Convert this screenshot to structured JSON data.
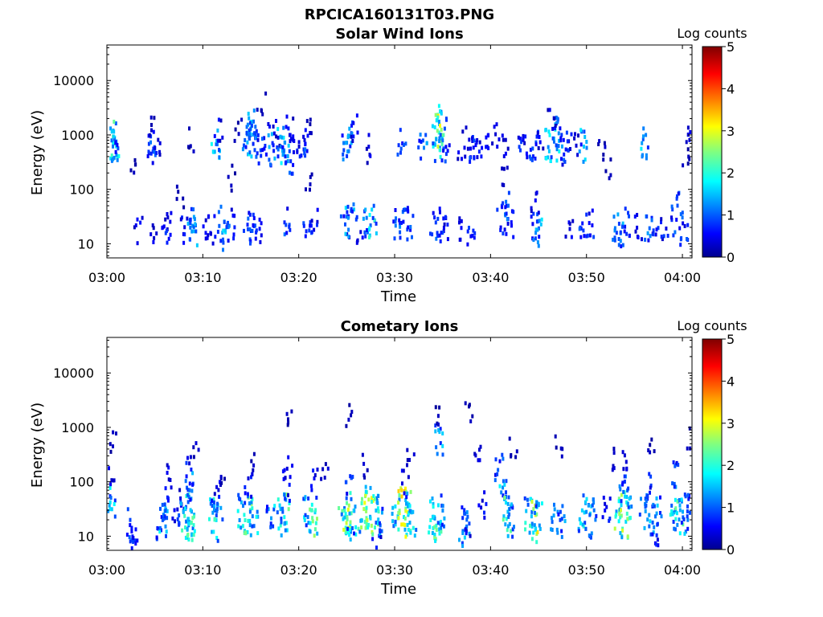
{
  "figure": {
    "title": "RPCICA160131T03.PNG"
  },
  "colorbar": {
    "label": "Log counts",
    "ticks": [
      "0",
      "1",
      "2",
      "3",
      "4",
      "5"
    ],
    "range": [
      0,
      5
    ],
    "colormap": "jet"
  },
  "chart_data": [
    {
      "type": "heatmap",
      "title": "Solar Wind Ions",
      "xlabel": "Time",
      "ylabel": "Energy (eV)",
      "xticks": [
        "03:00",
        "03:10",
        "03:20",
        "03:30",
        "03:40",
        "03:50",
        "04:00"
      ],
      "xlim_minutes": [
        0,
        61
      ],
      "yticks": [
        "10",
        "100",
        "1000",
        "10000"
      ],
      "ylim_eV": [
        5.5,
        45000
      ],
      "yscale": "log",
      "value_label": "Log counts",
      "value_range": [
        0,
        5
      ],
      "bursts": [
        {
          "t": 0.7,
          "e": 900,
          "v": 2.0
        },
        {
          "t": 0.7,
          "e": 650,
          "v": 1.6
        },
        {
          "t": 0.7,
          "e": 450,
          "v": 1.2
        },
        {
          "t": 2.5,
          "e": 350,
          "v": 0.3
        },
        {
          "t": 3.2,
          "e": 18,
          "v": 0.6
        },
        {
          "t": 4.8,
          "e": 14,
          "v": 0.5
        },
        {
          "t": 4.6,
          "e": 650,
          "v": 1.0
        },
        {
          "t": 4.6,
          "e": 900,
          "v": 1.2
        },
        {
          "t": 4.6,
          "e": 1500,
          "v": 0.3
        },
        {
          "t": 5.2,
          "e": 600,
          "v": 0.4
        },
        {
          "t": 6.0,
          "e": 20,
          "v": 0.7
        },
        {
          "t": 6.3,
          "e": 25,
          "v": 0.8
        },
        {
          "t": 7.5,
          "e": 80,
          "v": 0.3
        },
        {
          "t": 8.0,
          "e": 20,
          "v": 0.8
        },
        {
          "t": 8.6,
          "e": 25,
          "v": 1.3
        },
        {
          "t": 9.0,
          "e": 20,
          "v": 1.4
        },
        {
          "t": 8.5,
          "e": 900,
          "v": 0.3
        },
        {
          "t": 10.0,
          "e": 25,
          "v": 0.6
        },
        {
          "t": 10.9,
          "e": 20,
          "v": 0.7
        },
        {
          "t": 11.2,
          "e": 600,
          "v": 1.8
        },
        {
          "t": 11.5,
          "e": 1500,
          "v": 0.6
        },
        {
          "t": 11.8,
          "e": 25,
          "v": 1.5
        },
        {
          "t": 12.3,
          "e": 15,
          "v": 1.2
        },
        {
          "t": 12.8,
          "e": 25,
          "v": 0.8
        },
        {
          "t": 12.8,
          "e": 180,
          "v": 0.3
        },
        {
          "t": 13.5,
          "e": 1200,
          "v": 0.3
        },
        {
          "t": 14.5,
          "e": 25,
          "v": 1.0
        },
        {
          "t": 15.0,
          "e": 20,
          "v": 1.1
        },
        {
          "t": 15.6,
          "e": 20,
          "v": 0.9
        },
        {
          "t": 14.5,
          "e": 700,
          "v": 1.1
        },
        {
          "t": 14.8,
          "e": 1000,
          "v": 2.0
        },
        {
          "t": 15.0,
          "e": 1500,
          "v": 1.4
        },
        {
          "t": 15.2,
          "e": 800,
          "v": 1.2
        },
        {
          "t": 15.5,
          "e": 600,
          "v": 0.8
        },
        {
          "t": 16.0,
          "e": 4000,
          "v": 0.3
        },
        {
          "t": 16.5,
          "e": 900,
          "v": 1.0
        },
        {
          "t": 17.0,
          "e": 600,
          "v": 1.3
        },
        {
          "t": 17.5,
          "e": 1200,
          "v": 0.5
        },
        {
          "t": 18.0,
          "e": 700,
          "v": 1.6
        },
        {
          "t": 18.5,
          "e": 900,
          "v": 1.4
        },
        {
          "t": 18.9,
          "e": 400,
          "v": 1.2
        },
        {
          "t": 19.3,
          "e": 600,
          "v": 1.0
        },
        {
          "t": 19.0,
          "e": 1500,
          "v": 0.6
        },
        {
          "t": 18.8,
          "e": 25,
          "v": 1.0
        },
        {
          "t": 20.3,
          "e": 600,
          "v": 0.7
        },
        {
          "t": 20.8,
          "e": 800,
          "v": 1.0
        },
        {
          "t": 21.2,
          "e": 1200,
          "v": 0.4
        },
        {
          "t": 20.8,
          "e": 25,
          "v": 0.9
        },
        {
          "t": 21.4,
          "e": 25,
          "v": 0.8
        },
        {
          "t": 21.0,
          "e": 180,
          "v": 0.3
        },
        {
          "t": 24.7,
          "e": 25,
          "v": 1.0
        },
        {
          "t": 25.2,
          "e": 30,
          "v": 1.6
        },
        {
          "t": 24.8,
          "e": 650,
          "v": 1.3
        },
        {
          "t": 25.3,
          "e": 900,
          "v": 1.5
        },
        {
          "t": 25.6,
          "e": 1500,
          "v": 0.6
        },
        {
          "t": 26.2,
          "e": 20,
          "v": 0.8
        },
        {
          "t": 27.0,
          "e": 30,
          "v": 1.3
        },
        {
          "t": 27.6,
          "e": 25,
          "v": 1.8
        },
        {
          "t": 27.0,
          "e": 600,
          "v": 0.5
        },
        {
          "t": 30.0,
          "e": 25,
          "v": 1.1
        },
        {
          "t": 30.8,
          "e": 25,
          "v": 1.2
        },
        {
          "t": 31.5,
          "e": 25,
          "v": 1.0
        },
        {
          "t": 30.6,
          "e": 700,
          "v": 0.9
        },
        {
          "t": 32.8,
          "e": 700,
          "v": 1.4
        },
        {
          "t": 34.0,
          "e": 25,
          "v": 1.0
        },
        {
          "t": 34.7,
          "e": 25,
          "v": 1.0
        },
        {
          "t": 35.0,
          "e": 18,
          "v": 0.7
        },
        {
          "t": 34.2,
          "e": 800,
          "v": 2.0
        },
        {
          "t": 34.6,
          "e": 1100,
          "v": 2.8
        },
        {
          "t": 34.9,
          "e": 1800,
          "v": 1.6
        },
        {
          "t": 35.2,
          "e": 700,
          "v": 1.2
        },
        {
          "t": 36.8,
          "e": 700,
          "v": 0.5
        },
        {
          "t": 37.7,
          "e": 1000,
          "v": 0.8
        },
        {
          "t": 38.0,
          "e": 600,
          "v": 1.0
        },
        {
          "t": 37.0,
          "e": 18,
          "v": 0.6
        },
        {
          "t": 37.8,
          "e": 15,
          "v": 1.0
        },
        {
          "t": 38.6,
          "e": 700,
          "v": 0.7
        },
        {
          "t": 39.3,
          "e": 600,
          "v": 0.6
        },
        {
          "t": 40.5,
          "e": 1000,
          "v": 0.5
        },
        {
          "t": 41.5,
          "e": 600,
          "v": 0.6
        },
        {
          "t": 41.0,
          "e": 30,
          "v": 1.0
        },
        {
          "t": 41.5,
          "e": 50,
          "v": 1.2
        },
        {
          "t": 41.8,
          "e": 25,
          "v": 0.9
        },
        {
          "t": 41.5,
          "e": 200,
          "v": 0.3
        },
        {
          "t": 43.0,
          "e": 700,
          "v": 0.9
        },
        {
          "t": 43.8,
          "e": 700,
          "v": 0.8
        },
        {
          "t": 44.5,
          "e": 700,
          "v": 1.0
        },
        {
          "t": 45.0,
          "e": 900,
          "v": 0.6
        },
        {
          "t": 44.5,
          "e": 25,
          "v": 1.0
        },
        {
          "t": 44.8,
          "e": 20,
          "v": 1.5
        },
        {
          "t": 44.5,
          "e": 55,
          "v": 0.6
        },
        {
          "t": 46.0,
          "e": 700,
          "v": 1.6
        },
        {
          "t": 46.6,
          "e": 800,
          "v": 1.8
        },
        {
          "t": 47.0,
          "e": 1200,
          "v": 1.3
        },
        {
          "t": 47.3,
          "e": 600,
          "v": 1.0
        },
        {
          "t": 46.3,
          "e": 2000,
          "v": 0.5
        },
        {
          "t": 48.0,
          "e": 800,
          "v": 0.8
        },
        {
          "t": 48.6,
          "e": 700,
          "v": 0.6
        },
        {
          "t": 49.5,
          "e": 700,
          "v": 1.5
        },
        {
          "t": 48.0,
          "e": 18,
          "v": 0.6
        },
        {
          "t": 49.5,
          "e": 25,
          "v": 1.0
        },
        {
          "t": 50.2,
          "e": 25,
          "v": 0.9
        },
        {
          "t": 52.0,
          "e": 300,
          "v": 0.3
        },
        {
          "t": 51.5,
          "e": 700,
          "v": 0.4
        },
        {
          "t": 53.0,
          "e": 25,
          "v": 1.1
        },
        {
          "t": 53.6,
          "e": 20,
          "v": 1.3
        },
        {
          "t": 54.0,
          "e": 28,
          "v": 0.9
        },
        {
          "t": 55.2,
          "e": 20,
          "v": 0.7
        },
        {
          "t": 56.0,
          "e": 700,
          "v": 1.6
        },
        {
          "t": 56.3,
          "e": 25,
          "v": 1.2
        },
        {
          "t": 57.2,
          "e": 30,
          "v": 0.8
        },
        {
          "t": 58.0,
          "e": 25,
          "v": 0.8
        },
        {
          "t": 59.0,
          "e": 30,
          "v": 1.0
        },
        {
          "t": 59.6,
          "e": 50,
          "v": 1.0
        },
        {
          "t": 60.0,
          "e": 20,
          "v": 0.9
        },
        {
          "t": 60.4,
          "e": 1100,
          "v": 0.6
        },
        {
          "t": 60.3,
          "e": 450,
          "v": 0.3
        }
      ]
    },
    {
      "type": "heatmap",
      "title": "Cometary Ions",
      "xlabel": "Time",
      "ylabel": "Energy (eV)",
      "xticks": [
        "03:00",
        "03:10",
        "03:20",
        "03:30",
        "03:40",
        "03:50",
        "04:00"
      ],
      "xlim_minutes": [
        0,
        61
      ],
      "yticks": [
        "10",
        "100",
        "1000",
        "10000"
      ],
      "ylim_eV": [
        5.5,
        45000
      ],
      "yscale": "log",
      "value_label": "Log counts",
      "value_range": [
        0,
        5
      ],
      "bursts": [
        {
          "t": 0.3,
          "e": 40,
          "v": 1.6
        },
        {
          "t": 0.3,
          "e": 120,
          "v": 0.5
        },
        {
          "t": 0.6,
          "e": 600,
          "v": 0.3
        },
        {
          "t": 2.2,
          "e": 18,
          "v": 1.0
        },
        {
          "t": 2.5,
          "e": 12,
          "v": 0.8
        },
        {
          "t": 2.6,
          "e": 8,
          "v": 0.6
        },
        {
          "t": 5.5,
          "e": 15,
          "v": 1.2
        },
        {
          "t": 5.8,
          "e": 20,
          "v": 1.6
        },
        {
          "t": 6.0,
          "e": 30,
          "v": 1.3
        },
        {
          "t": 6.2,
          "e": 120,
          "v": 0.7
        },
        {
          "t": 7.0,
          "e": 30,
          "v": 0.9
        },
        {
          "t": 7.5,
          "e": 60,
          "v": 0.5
        },
        {
          "t": 8.0,
          "e": 28,
          "v": 2.0
        },
        {
          "t": 8.4,
          "e": 25,
          "v": 2.5
        },
        {
          "t": 8.7,
          "e": 20,
          "v": 2.0
        },
        {
          "t": 8.5,
          "e": 90,
          "v": 1.3
        },
        {
          "t": 8.6,
          "e": 180,
          "v": 0.8
        },
        {
          "t": 9.0,
          "e": 350,
          "v": 0.4
        },
        {
          "t": 11.0,
          "e": 25,
          "v": 1.8
        },
        {
          "t": 11.5,
          "e": 20,
          "v": 2.0
        },
        {
          "t": 11.2,
          "e": 70,
          "v": 0.8
        },
        {
          "t": 11.8,
          "e": 150,
          "v": 0.4
        },
        {
          "t": 14.0,
          "e": 28,
          "v": 1.8
        },
        {
          "t": 14.6,
          "e": 25,
          "v": 2.2
        },
        {
          "t": 15.2,
          "e": 20,
          "v": 1.8
        },
        {
          "t": 14.6,
          "e": 90,
          "v": 0.8
        },
        {
          "t": 15.0,
          "e": 200,
          "v": 0.4
        },
        {
          "t": 17.0,
          "e": 20,
          "v": 1.2
        },
        {
          "t": 17.8,
          "e": 25,
          "v": 1.8
        },
        {
          "t": 18.5,
          "e": 28,
          "v": 2.2
        },
        {
          "t": 18.7,
          "e": 90,
          "v": 0.8
        },
        {
          "t": 18.8,
          "e": 200,
          "v": 0.5
        },
        {
          "t": 18.9,
          "e": 1800,
          "v": 0.3
        },
        {
          "t": 20.8,
          "e": 28,
          "v": 1.6
        },
        {
          "t": 21.4,
          "e": 25,
          "v": 2.3
        },
        {
          "t": 21.5,
          "e": 100,
          "v": 0.7
        },
        {
          "t": 22.6,
          "e": 200,
          "v": 0.4
        },
        {
          "t": 24.5,
          "e": 25,
          "v": 2.2
        },
        {
          "t": 25.0,
          "e": 30,
          "v": 2.6
        },
        {
          "t": 25.4,
          "e": 20,
          "v": 1.6
        },
        {
          "t": 25.2,
          "e": 80,
          "v": 1.0
        },
        {
          "t": 25.0,
          "e": 1600,
          "v": 0.3
        },
        {
          "t": 26.5,
          "e": 28,
          "v": 2.3
        },
        {
          "t": 27.2,
          "e": 35,
          "v": 2.8
        },
        {
          "t": 27.8,
          "e": 25,
          "v": 2.4
        },
        {
          "t": 28.3,
          "e": 18,
          "v": 1.6
        },
        {
          "t": 27.0,
          "e": 200,
          "v": 0.4
        },
        {
          "t": 28.0,
          "e": 10,
          "v": 0.8
        },
        {
          "t": 30.0,
          "e": 28,
          "v": 2.0
        },
        {
          "t": 30.6,
          "e": 32,
          "v": 2.8
        },
        {
          "t": 31.2,
          "e": 28,
          "v": 3.0
        },
        {
          "t": 31.7,
          "e": 25,
          "v": 2.1
        },
        {
          "t": 31.0,
          "e": 100,
          "v": 0.6
        },
        {
          "t": 31.5,
          "e": 250,
          "v": 0.4
        },
        {
          "t": 33.8,
          "e": 25,
          "v": 1.8
        },
        {
          "t": 34.3,
          "e": 20,
          "v": 2.1
        },
        {
          "t": 34.7,
          "e": 30,
          "v": 1.5
        },
        {
          "t": 34.5,
          "e": 700,
          "v": 1.5
        },
        {
          "t": 34.6,
          "e": 1700,
          "v": 0.3
        },
        {
          "t": 37.0,
          "e": 15,
          "v": 1.4
        },
        {
          "t": 37.3,
          "e": 22,
          "v": 1.2
        },
        {
          "t": 37.5,
          "e": 8,
          "v": 0.6
        },
        {
          "t": 37.7,
          "e": 1800,
          "v": 0.3
        },
        {
          "t": 38.5,
          "e": 300,
          "v": 0.5
        },
        {
          "t": 39.0,
          "e": 40,
          "v": 0.7
        },
        {
          "t": 40.8,
          "e": 200,
          "v": 1.0
        },
        {
          "t": 41.2,
          "e": 60,
          "v": 1.6
        },
        {
          "t": 41.6,
          "e": 30,
          "v": 2.2
        },
        {
          "t": 41.9,
          "e": 20,
          "v": 1.5
        },
        {
          "t": 42.2,
          "e": 500,
          "v": 0.3
        },
        {
          "t": 43.8,
          "e": 25,
          "v": 1.8
        },
        {
          "t": 44.4,
          "e": 20,
          "v": 2.8
        },
        {
          "t": 44.8,
          "e": 30,
          "v": 1.6
        },
        {
          "t": 46.5,
          "e": 25,
          "v": 1.2
        },
        {
          "t": 47.2,
          "e": 20,
          "v": 1.4
        },
        {
          "t": 47.0,
          "e": 500,
          "v": 0.3
        },
        {
          "t": 49.5,
          "e": 28,
          "v": 1.8
        },
        {
          "t": 50.2,
          "e": 25,
          "v": 1.6
        },
        {
          "t": 50.5,
          "e": 20,
          "v": 1.2
        },
        {
          "t": 52.0,
          "e": 40,
          "v": 1.0
        },
        {
          "t": 52.5,
          "e": 300,
          "v": 0.4
        },
        {
          "t": 53.2,
          "e": 30,
          "v": 2.4
        },
        {
          "t": 53.8,
          "e": 25,
          "v": 2.6
        },
        {
          "t": 54.2,
          "e": 40,
          "v": 1.8
        },
        {
          "t": 53.5,
          "e": 90,
          "v": 1.2
        },
        {
          "t": 54.0,
          "e": 300,
          "v": 0.5
        },
        {
          "t": 55.8,
          "e": 30,
          "v": 1.4
        },
        {
          "t": 56.5,
          "e": 20,
          "v": 1.5
        },
        {
          "t": 56.2,
          "e": 80,
          "v": 0.8
        },
        {
          "t": 57.3,
          "e": 28,
          "v": 1.4
        },
        {
          "t": 57.0,
          "e": 10,
          "v": 0.7
        },
        {
          "t": 56.5,
          "e": 500,
          "v": 0.3
        },
        {
          "t": 59.0,
          "e": 30,
          "v": 1.8
        },
        {
          "t": 59.5,
          "e": 40,
          "v": 2.0
        },
        {
          "t": 59.2,
          "e": 150,
          "v": 0.9
        },
        {
          "t": 60.0,
          "e": 25,
          "v": 1.6
        },
        {
          "t": 60.4,
          "e": 40,
          "v": 0.9
        },
        {
          "t": 60.6,
          "e": 700,
          "v": 0.3
        }
      ]
    }
  ]
}
